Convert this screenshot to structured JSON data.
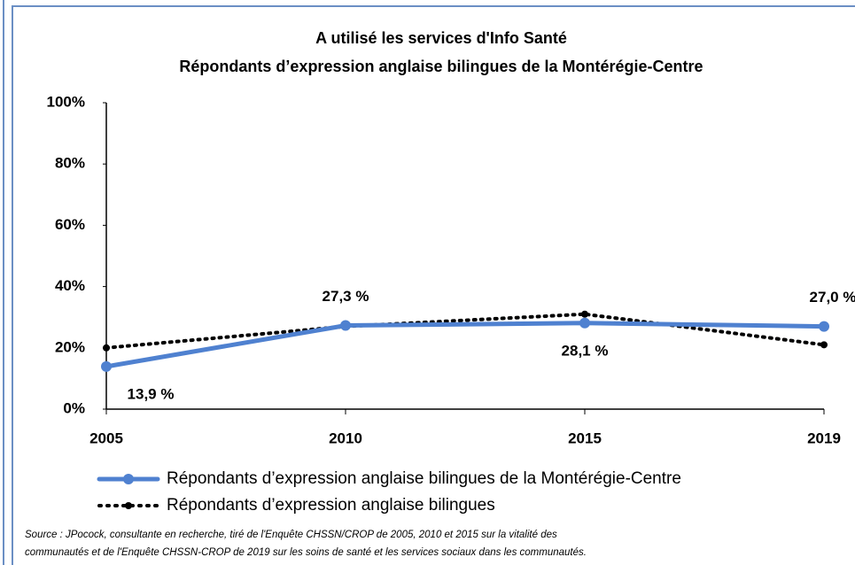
{
  "chart_data": {
    "type": "line",
    "title": [
      "A utilisé les services d'Info Santé",
      "Répondants d’expression anglaise bilingues de la Montérégie-Centre"
    ],
    "categories": [
      "2005",
      "2010",
      "2015",
      "2019"
    ],
    "series": [
      {
        "name": "Répondants d’expression anglaise bilingues de la Montérégie-Centre",
        "color": "#4f81d0",
        "style": "solid",
        "values": [
          13.9,
          27.3,
          28.1,
          27.0
        ],
        "value_labels": [
          "13,9 %",
          "27,3 %",
          "28,1 %",
          "27,0 %"
        ]
      },
      {
        "name": "Répondants d’expression anglaise bilingues",
        "color": "#000000",
        "style": "dotted",
        "values": [
          20,
          27,
          31,
          21
        ]
      }
    ],
    "ylim": [
      0,
      100
    ],
    "yticks": [
      {
        "value": 0,
        "label": "0%"
      },
      {
        "value": 20,
        "label": "20%"
      },
      {
        "value": 40,
        "label": "40%"
      },
      {
        "value": 60,
        "label": "60%"
      },
      {
        "value": 80,
        "label": "80%"
      },
      {
        "value": 100,
        "label": "100%"
      }
    ],
    "grid": false,
    "legend": "bottom",
    "source": [
      "Source : JPocock, consultante en recherche, tiré de l'Enquête CHSSN/CROP de 2005, 2010 et 2015 sur la vitalité des",
      "communautés et de l'Enquête CHSSN-CROP de 2019 sur les soins de santé et les services sociaux dans les communautés."
    ]
  }
}
